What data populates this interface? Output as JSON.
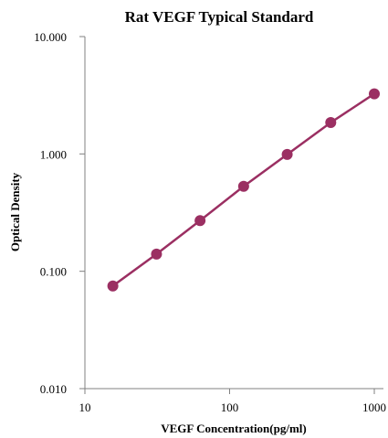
{
  "chart_data": {
    "type": "line",
    "title": "Rat VEGF Typical Standard",
    "xlabel": "VEGF  Concentration(pg/ml)",
    "ylabel": "Optical Density",
    "xscale": "log",
    "yscale": "log",
    "xlim": [
      10,
      1000
    ],
    "ylim": [
      0.01,
      10
    ],
    "x_ticks": [
      10,
      100,
      1000
    ],
    "x_tick_labels": [
      "10",
      "100",
      "1000"
    ],
    "y_ticks": [
      0.01,
      0.1,
      1,
      10
    ],
    "y_tick_labels": [
      "0.010",
      "0.100",
      "1.000",
      "10.000"
    ],
    "grid": false,
    "legend": "none",
    "color": "#9b2f62",
    "series": [
      {
        "x": [
          15.6,
          31.25,
          62.5,
          125,
          250,
          500,
          1000
        ],
        "y": [
          0.075,
          0.14,
          0.27,
          0.53,
          0.99,
          1.85,
          3.25
        ]
      }
    ]
  }
}
